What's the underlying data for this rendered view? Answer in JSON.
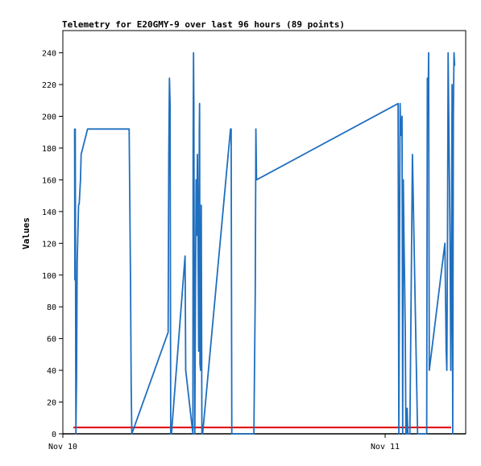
{
  "chart_data": {
    "type": "line",
    "title": "Telemetry for E20GMY-9 over last 96 hours (89 points)",
    "xlabel": "",
    "ylabel": "Values",
    "ylim": [
      0,
      254
    ],
    "y_ticks": [
      0,
      20,
      40,
      60,
      80,
      100,
      120,
      140,
      160,
      180,
      200,
      220,
      240
    ],
    "x_ticks": [
      {
        "label": "Nov 10",
        "hour": 0
      },
      {
        "label": "Nov 11",
        "hour": 24
      }
    ],
    "xlim_hours": [
      0,
      30.2
    ],
    "grid": false,
    "colors": {
      "series": "#1f6fbf",
      "threshold": "#e00000",
      "baseline": "#000000",
      "frame": "#000000"
    },
    "series": [
      {
        "x_hours": [
          0.1,
          0.12,
          0.15,
          0.2,
          0.25,
          0.3,
          0.4,
          0.45,
          0.55,
          0.6,
          1.1,
          4.3,
          4.4,
          4.45,
          4.5,
          7.3,
          7.35,
          7.4,
          7.45,
          7.5,
          7.55,
          8.6,
          8.65,
          9.2,
          9.22,
          9.25,
          9.28,
          9.3,
          9.35,
          9.4,
          9.45,
          9.5,
          9.55,
          9.6,
          9.65,
          9.7,
          9.72,
          9.75,
          9.8,
          9.85,
          9.9,
          9.95,
          12.1,
          12.15,
          12.2,
          13.9,
          14.0,
          14.05,
          14.1,
          25.0,
          25.05,
          25.1,
          25.15,
          25.2,
          25.3,
          25.35,
          25.4,
          25.45,
          25.5,
          25.55,
          25.6,
          25.65,
          25.7,
          25.75,
          25.8,
          25.9,
          26.0,
          26.1,
          26.5,
          27.2,
          27.25,
          27.3,
          27.35,
          27.4,
          28.6,
          28.7,
          28.75,
          28.8,
          28.85,
          28.9,
          28.95,
          29.0,
          29.05,
          29.1,
          29.15,
          29.2,
          29.25,
          29.3,
          29.35
        ],
        "values": [
          192,
          97,
          192,
          0,
          36,
          108,
          144,
          145,
          160,
          176,
          192,
          192,
          96,
          32,
          0,
          64,
          176,
          224,
          208,
          0,
          0,
          112,
          40,
          0,
          180,
          240,
          208,
          120,
          0,
          88,
          160,
          125,
          176,
          125,
          52,
          192,
          208,
          44,
          40,
          144,
          0,
          0,
          192,
          192,
          0,
          0,
          88,
          192,
          160,
          208,
          0,
          104,
          208,
          188,
          200,
          0,
          160,
          124,
          96,
          64,
          0,
          0,
          16,
          0,
          0,
          0,
          88,
          176,
          0,
          0,
          224,
          200,
          240,
          40,
          120,
          52,
          40,
          120,
          240,
          200,
          160,
          120,
          40,
          96,
          220,
          0,
          200,
          240,
          232
        ],
        "note_values_clamped": false
      }
    ],
    "threshold_value": 4
  }
}
